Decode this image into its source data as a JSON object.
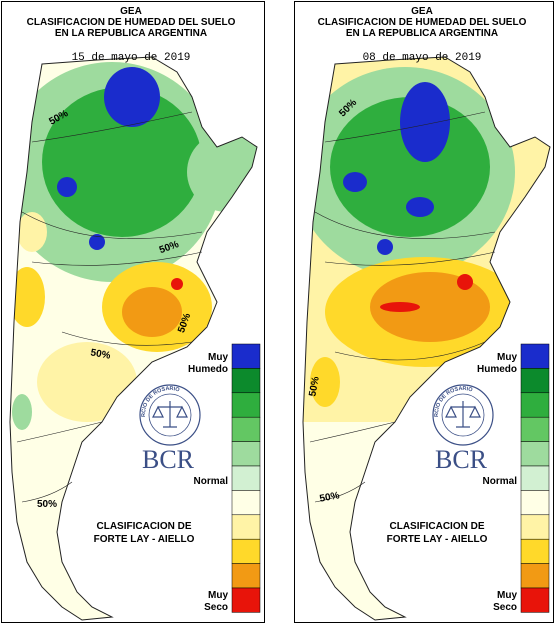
{
  "legend_colors": [
    "#1a2ccc",
    "#0c8a2c",
    "#2fae3e",
    "#63c763",
    "#9edb9e",
    "#d2f0d2",
    "#ffffe6",
    "#fff3a6",
    "#ffd92a",
    "#f29a14",
    "#e8140a"
  ],
  "panels": [
    {
      "title": [
        "GEA",
        "CLASIFICACION DE HUMEDAD DEL SUELO",
        "EN LA REPUBLICA ARGENTINA"
      ],
      "date": "15 de mayo de 2019",
      "contour_labels": [
        "50%",
        "50%",
        "50%",
        "50%",
        "50%"
      ],
      "legend_top": [
        "Muy",
        "Humedo"
      ],
      "legend_mid": "Normal",
      "legend_bottom": [
        "Muy",
        "Seco"
      ],
      "logo_ring": "BOLSA DE COMERCIO DE ROSARIO",
      "logo": "BCR",
      "credit": [
        "CLASIFICACION DE",
        "FORTE LAY - AIELLO"
      ]
    },
    {
      "title": [
        "GEA",
        "CLASIFICACION DE HUMEDAD DEL SUELO",
        "EN LA REPUBLICA ARGENTINA"
      ],
      "date": "08 de mayo de 2019",
      "contour_labels": [
        "50%",
        "50%",
        "50%"
      ],
      "legend_top": [
        "Muy",
        "Humedo"
      ],
      "legend_mid": "Normal",
      "legend_bottom": [
        "Muy",
        "Seco"
      ],
      "logo_ring": "BOLSA DE COMERCIO DE ROSARIO",
      "logo": "BCR",
      "credit": [
        "CLASIFICACION DE",
        "FORTE LAY - AIELLO"
      ]
    }
  ]
}
